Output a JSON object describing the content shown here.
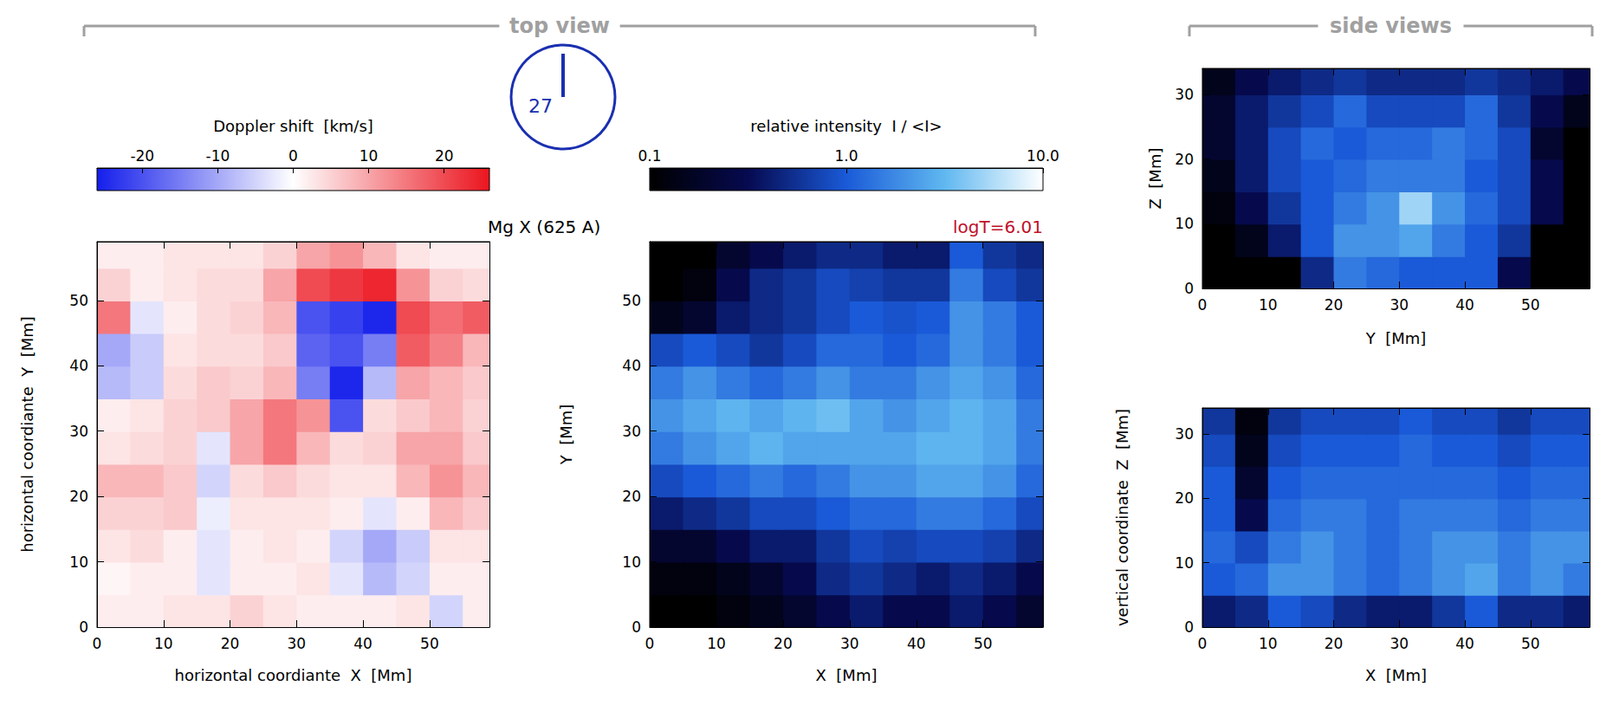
{
  "figure": {
    "top_view_label": "top view",
    "side_views_label": "side views",
    "clock": "27",
    "line": "Mg X (625 A)",
    "temperature": "logT=6.01"
  },
  "chart_data": [
    {
      "type": "heatmap",
      "xlabel": "horizontal coordiante  X  [Mm]",
      "ylabel": "horizontal coordiante  Y  [Mm]",
      "xlim": [
        0,
        59
      ],
      "ylim": [
        0,
        59
      ],
      "xticks": [
        0,
        10,
        20,
        30,
        40,
        50
      ],
      "yticks": [
        0,
        10,
        20,
        30,
        40,
        50
      ],
      "x": [
        2.5,
        7.5,
        12.5,
        17.5,
        22.5,
        27.5,
        32.5,
        37.5,
        42.5,
        47.5,
        52.5,
        57.5
      ],
      "y": [
        2.5,
        7.5,
        12.5,
        17.5,
        22.5,
        27.5,
        32.5,
        37.5,
        42.5,
        47.5,
        52.5,
        57.5
      ],
      "cells": [
        [
          2,
          2,
          3,
          3,
          5,
          3,
          2,
          2,
          2,
          3,
          -5,
          2
        ],
        [
          1,
          2,
          2,
          -3,
          2,
          2,
          3,
          -3,
          -8,
          -5,
          2,
          2
        ],
        [
          3,
          4,
          2,
          -3,
          2,
          3,
          2,
          -5,
          -10,
          -6,
          3,
          3
        ],
        [
          5,
          5,
          6,
          -2,
          3,
          3,
          3,
          2,
          -3,
          2,
          8,
          6
        ],
        [
          8,
          8,
          6,
          -5,
          4,
          6,
          4,
          3,
          3,
          8,
          12,
          8
        ],
        [
          3,
          4,
          5,
          -3,
          10,
          15,
          8,
          4,
          5,
          10,
          10,
          6
        ],
        [
          2,
          3,
          5,
          6,
          10,
          15,
          12,
          -20,
          4,
          6,
          8,
          5
        ],
        [
          -8,
          -6,
          4,
          6,
          5,
          8,
          -15,
          -25,
          -8,
          10,
          8,
          6
        ],
        [
          -10,
          -6,
          3,
          4,
          4,
          6,
          -18,
          -20,
          -15,
          18,
          14,
          8
        ],
        [
          15,
          -3,
          2,
          4,
          5,
          8,
          -20,
          -22,
          -25,
          20,
          16,
          18
        ],
        [
          5,
          2,
          3,
          4,
          4,
          10,
          20,
          22,
          24,
          12,
          5,
          4
        ],
        [
          2,
          2,
          3,
          3,
          3,
          5,
          10,
          12,
          8,
          3,
          2,
          2
        ]
      ],
      "colorbar": {
        "label": "Doppler shift  [km/s]",
        "lim": [
          -26,
          26
        ],
        "ticks": [
          -20,
          -10,
          0,
          10,
          20
        ]
      }
    },
    {
      "type": "heatmap",
      "xlabel": "X  [Mm]",
      "ylabel": "Y  [Mm]",
      "xlim": [
        0,
        59
      ],
      "ylim": [
        0,
        59
      ],
      "xticks": [
        0,
        10,
        20,
        30,
        40,
        50
      ],
      "yticks": [
        0,
        10,
        20,
        30,
        40,
        50
      ],
      "x": [
        2.5,
        7.5,
        12.5,
        17.5,
        22.5,
        27.5,
        32.5,
        37.5,
        42.5,
        47.5,
        52.5,
        57.5
      ],
      "y": [
        2.5,
        7.5,
        12.5,
        17.5,
        22.5,
        27.5,
        32.5,
        37.5,
        42.5,
        47.5,
        52.5,
        57.5
      ],
      "cells": [
        [
          0.1,
          0.1,
          0.12,
          0.15,
          0.2,
          0.3,
          0.4,
          0.3,
          0.3,
          0.4,
          0.3,
          0.2
        ],
        [
          0.12,
          0.12,
          0.15,
          0.2,
          0.3,
          0.5,
          0.6,
          0.5,
          0.4,
          0.5,
          0.4,
          0.3
        ],
        [
          0.2,
          0.2,
          0.3,
          0.4,
          0.4,
          0.6,
          0.8,
          0.7,
          0.8,
          0.8,
          0.7,
          0.5
        ],
        [
          0.4,
          0.5,
          0.6,
          0.8,
          0.8,
          1.0,
          1.2,
          1.2,
          1.5,
          1.5,
          1.2,
          0.8
        ],
        [
          0.8,
          1.0,
          1.2,
          1.5,
          1.2,
          1.5,
          2.0,
          2.0,
          2.5,
          2.5,
          2.0,
          1.2
        ],
        [
          1.5,
          2.0,
          2.5,
          3.0,
          2.5,
          2.5,
          2.5,
          2.5,
          3.0,
          3.0,
          2.5,
          1.5
        ],
        [
          2.0,
          2.5,
          3.0,
          2.5,
          3.0,
          3.5,
          2.5,
          2.0,
          2.5,
          3.0,
          2.5,
          1.5
        ],
        [
          1.5,
          2.0,
          1.5,
          1.2,
          1.5,
          2.0,
          1.5,
          1.5,
          2.0,
          2.5,
          2.0,
          1.2
        ],
        [
          0.8,
          1.0,
          0.8,
          0.6,
          0.8,
          1.2,
          1.2,
          1.0,
          1.2,
          2.0,
          1.5,
          1.0
        ],
        [
          0.15,
          0.2,
          0.4,
          0.5,
          0.6,
          0.8,
          1.0,
          0.9,
          1.0,
          2.0,
          1.5,
          1.0
        ],
        [
          0.1,
          0.12,
          0.3,
          0.5,
          0.6,
          0.8,
          0.7,
          0.6,
          0.6,
          1.5,
          0.8,
          0.6
        ],
        [
          0.1,
          0.1,
          0.2,
          0.3,
          0.4,
          0.5,
          0.5,
          0.4,
          0.4,
          1.0,
          0.6,
          0.5
        ]
      ],
      "colorbar": {
        "label": "relative intensity  I / <I>",
        "lim": [
          0.1,
          10
        ],
        "ticks": [
          0.1,
          {
            "value": 1,
            "label": "1.0"
          },
          {
            "value": 10,
            "label": "10.0"
          }
        ],
        "log": true
      }
    },
    {
      "type": "heatmap",
      "xlabel": "Y  [Mm]",
      "ylabel": "Z  [Mm]",
      "xlim": [
        0,
        59
      ],
      "ylim": [
        0,
        34
      ],
      "xticks": [
        0,
        10,
        20,
        30,
        40,
        50
      ],
      "yticks": [
        0,
        10,
        20,
        30
      ],
      "x": [
        2.5,
        7.5,
        12.5,
        17.5,
        22.5,
        27.5,
        32.5,
        37.5,
        42.5,
        47.5,
        52.5,
        57.5
      ],
      "y": [
        2.5,
        7.5,
        12.5,
        17.5,
        22.5,
        27.5,
        32.5
      ],
      "cells": [
        [
          0.1,
          0.1,
          0.1,
          0.5,
          1.5,
          1.2,
          1.0,
          1.0,
          1.0,
          0.3,
          0.1,
          0.1
        ],
        [
          0.1,
          0.15,
          0.4,
          1.0,
          2.0,
          2.0,
          2.5,
          1.5,
          1.0,
          0.6,
          0.1,
          0.1
        ],
        [
          0.12,
          0.3,
          0.6,
          1.0,
          1.5,
          2.0,
          5.0,
          2.0,
          1.2,
          0.8,
          0.3,
          0.1
        ],
        [
          0.15,
          0.4,
          0.8,
          1.0,
          1.2,
          1.5,
          1.5,
          1.5,
          1.0,
          0.8,
          0.3,
          0.1
        ],
        [
          0.2,
          0.4,
          0.8,
          1.2,
          1.0,
          1.2,
          1.2,
          1.5,
          1.2,
          0.8,
          0.2,
          0.1
        ],
        [
          0.2,
          0.4,
          0.6,
          0.8,
          1.2,
          0.8,
          0.8,
          0.8,
          1.2,
          0.6,
          0.3,
          0.15
        ],
        [
          0.15,
          0.3,
          0.4,
          0.5,
          0.6,
          0.5,
          0.5,
          0.5,
          0.6,
          0.5,
          0.4,
          0.3
        ]
      ],
      "colorbar": {
        "lim": [
          0.1,
          10
        ],
        "log": true
      }
    },
    {
      "type": "heatmap",
      "xlabel": "X  [Mm]",
      "ylabel": "vertical coordinate  Z  [Mm]",
      "xlim": [
        0,
        59
      ],
      "ylim": [
        0,
        34
      ],
      "xticks": [
        0,
        10,
        20,
        30,
        40,
        50
      ],
      "yticks": [
        0,
        10,
        20,
        30
      ],
      "x": [
        2.5,
        7.5,
        12.5,
        17.5,
        22.5,
        27.5,
        32.5,
        37.5,
        42.5,
        47.5,
        52.5,
        57.5
      ],
      "y": [
        2.5,
        7.5,
        12.5,
        17.5,
        22.5,
        27.5,
        32.5
      ],
      "cells": [
        [
          0.4,
          0.5,
          1.0,
          0.8,
          0.5,
          0.4,
          0.4,
          0.6,
          1.0,
          0.5,
          0.5,
          0.4
        ],
        [
          1.0,
          1.2,
          2.0,
          2.0,
          1.5,
          1.2,
          1.5,
          2.0,
          2.5,
          1.5,
          2.0,
          1.5
        ],
        [
          1.2,
          0.8,
          1.5,
          2.0,
          1.5,
          1.2,
          1.5,
          2.0,
          2.0,
          1.5,
          2.0,
          2.0
        ],
        [
          1.0,
          0.3,
          1.2,
          1.5,
          1.5,
          1.2,
          1.5,
          1.5,
          1.5,
          1.2,
          1.5,
          1.5
        ],
        [
          1.0,
          0.2,
          1.0,
          1.2,
          1.2,
          1.2,
          1.2,
          1.2,
          1.2,
          1.0,
          1.2,
          1.2
        ],
        [
          0.8,
          0.15,
          0.8,
          1.0,
          1.0,
          1.0,
          1.2,
          1.0,
          1.0,
          0.8,
          1.0,
          1.0
        ],
        [
          0.6,
          0.12,
          0.6,
          0.8,
          0.8,
          0.8,
          1.0,
          0.8,
          0.8,
          0.6,
          0.8,
          0.8
        ]
      ],
      "colorbar": {
        "lim": [
          0.1,
          10
        ],
        "log": true
      }
    }
  ]
}
